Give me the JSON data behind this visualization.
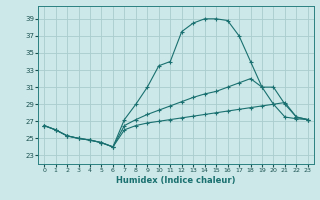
{
  "xlabel": "Humidex (Indice chaleur)",
  "bg_color": "#cce8e8",
  "grid_color": "#aacccc",
  "line_color": "#1a7070",
  "xlim": [
    -0.5,
    23.5
  ],
  "ylim": [
    22.0,
    40.5
  ],
  "yticks": [
    23,
    25,
    27,
    29,
    31,
    33,
    35,
    37,
    39
  ],
  "xticks": [
    0,
    1,
    2,
    3,
    4,
    5,
    6,
    7,
    8,
    9,
    10,
    11,
    12,
    13,
    14,
    15,
    16,
    17,
    18,
    19,
    20,
    21,
    22,
    23
  ],
  "curve1_x": [
    0,
    1,
    2,
    3,
    4,
    5,
    6,
    7,
    8,
    9,
    10,
    11,
    12,
    13,
    14,
    15,
    16,
    17,
    18,
    19,
    20,
    21,
    22,
    23
  ],
  "curve1_y": [
    26.5,
    26.0,
    25.3,
    25.0,
    24.8,
    24.5,
    24.0,
    27.2,
    29.0,
    31.0,
    33.5,
    34.0,
    37.5,
    38.5,
    39.0,
    39.0,
    38.8,
    37.0,
    34.0,
    31.0,
    29.0,
    27.5,
    27.3,
    27.2
  ],
  "curve2_x": [
    0,
    1,
    2,
    3,
    4,
    5,
    6,
    7,
    8,
    9,
    10,
    11,
    12,
    13,
    14,
    15,
    16,
    17,
    18,
    19,
    20,
    21,
    22,
    23
  ],
  "curve2_y": [
    26.5,
    26.0,
    25.3,
    25.0,
    24.8,
    24.5,
    24.0,
    26.5,
    27.2,
    27.8,
    28.3,
    28.8,
    29.3,
    29.8,
    30.2,
    30.5,
    31.0,
    31.5,
    32.0,
    31.0,
    31.0,
    29.0,
    27.5,
    27.2
  ],
  "curve3_x": [
    0,
    1,
    2,
    3,
    4,
    5,
    6,
    7,
    8,
    9,
    10,
    11,
    12,
    13,
    14,
    15,
    16,
    17,
    18,
    19,
    20,
    21,
    22,
    23
  ],
  "curve3_y": [
    26.5,
    26.0,
    25.3,
    25.0,
    24.8,
    24.5,
    24.0,
    26.0,
    26.5,
    26.8,
    27.0,
    27.2,
    27.4,
    27.6,
    27.8,
    28.0,
    28.2,
    28.4,
    28.6,
    28.8,
    29.0,
    29.2,
    27.5,
    27.2
  ]
}
